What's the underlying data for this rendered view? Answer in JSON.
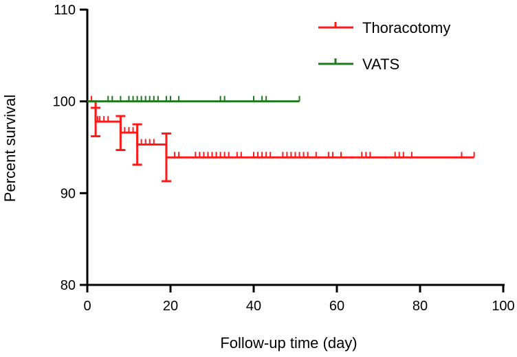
{
  "chart_data": {
    "type": "line",
    "title": "",
    "xlabel": "Follow-up time (day)",
    "ylabel": "Percent survival",
    "xlim": [
      0,
      100
    ],
    "ylim": [
      80,
      110
    ],
    "xticks": [
      "0",
      "20",
      "40",
      "60",
      "80",
      "100"
    ],
    "yticks": [
      "80",
      "90",
      "100",
      "110"
    ],
    "legend_position": "top-right",
    "grid": false,
    "series": [
      {
        "name": "Thoracotomy",
        "color": "#ff1a1a",
        "steps": [
          [
            0,
            100
          ],
          [
            2,
            97.8
          ],
          [
            8,
            96.6
          ],
          [
            12,
            95.3
          ],
          [
            19,
            93.9
          ],
          [
            93,
            93.9
          ]
        ],
        "error_bars": [
          {
            "x": 2,
            "low": 96.2,
            "high": 99.3
          },
          {
            "x": 8,
            "low": 94.7,
            "high": 98.4
          },
          {
            "x": 12,
            "low": 93.1,
            "high": 97.5
          },
          {
            "x": 19,
            "low": 91.3,
            "high": 96.5
          }
        ],
        "censored": [
          1,
          2.5,
          3,
          4,
          5,
          9,
          10,
          11,
          13,
          14,
          15,
          16,
          21,
          22,
          26,
          27,
          28,
          29,
          30,
          31,
          32,
          33,
          34,
          36,
          37,
          40,
          41,
          42,
          43,
          44,
          47,
          48,
          49,
          50,
          51,
          52,
          53,
          55,
          58,
          59,
          61,
          66,
          67,
          68,
          74,
          75,
          76,
          78,
          90,
          93
        ]
      },
      {
        "name": "VATS",
        "color": "#1e7a1e",
        "steps": [
          [
            0,
            100
          ],
          [
            51,
            100
          ]
        ],
        "error_bars": [],
        "censored": [
          5,
          6,
          8,
          10,
          11,
          12,
          13,
          14,
          15,
          16,
          17,
          19,
          20,
          22,
          32,
          33,
          40,
          42,
          43,
          51
        ]
      }
    ]
  }
}
